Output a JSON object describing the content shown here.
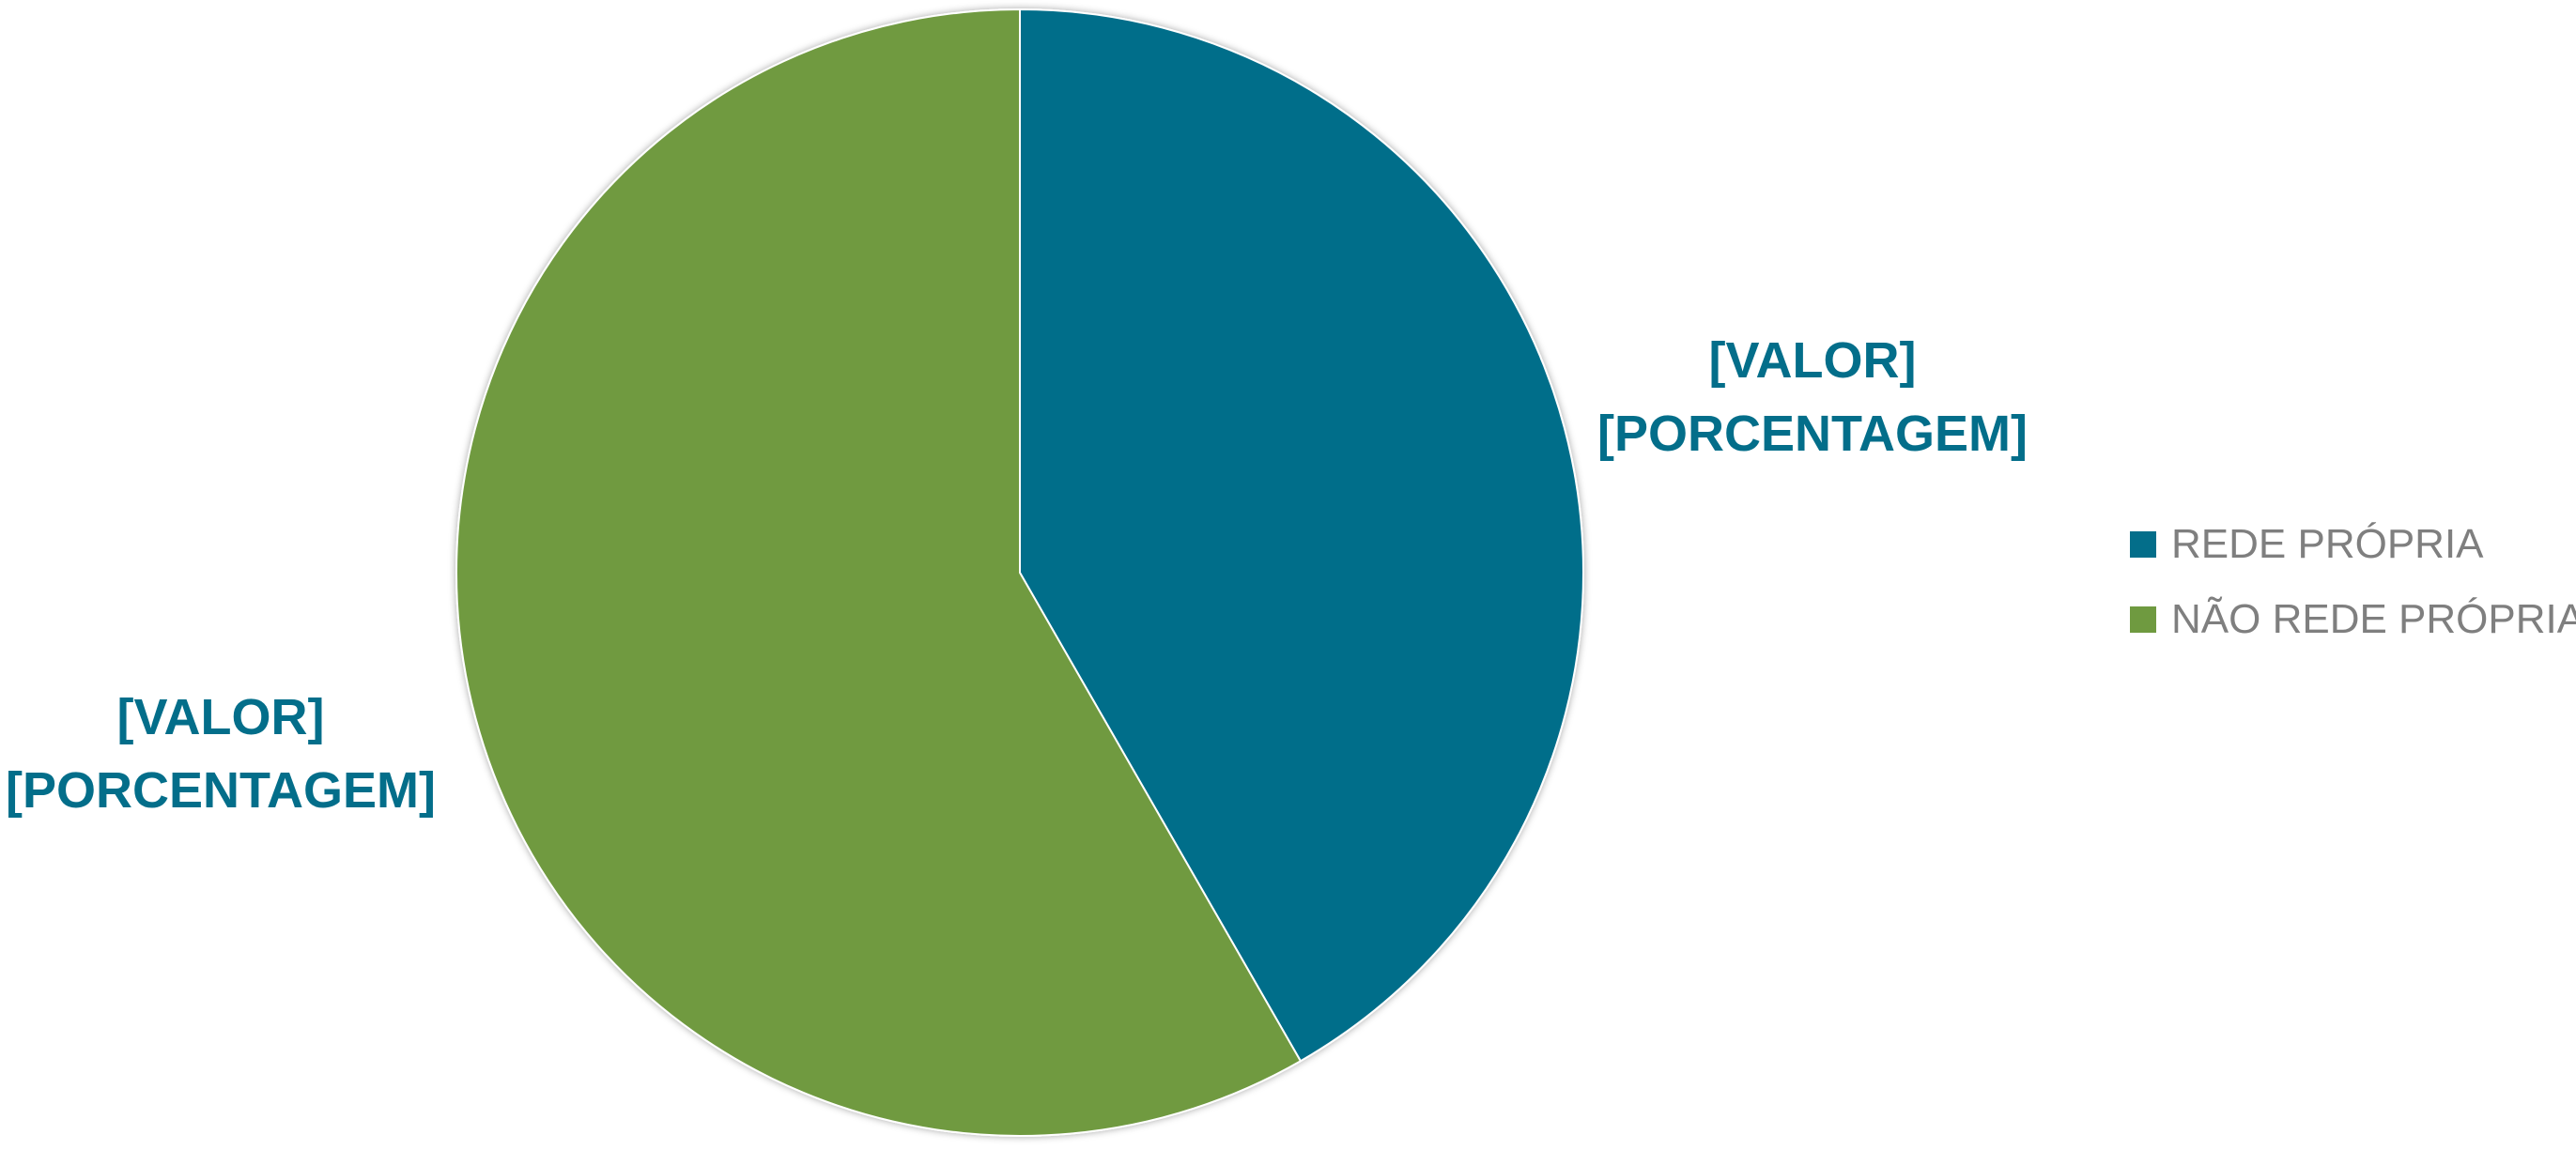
{
  "chart_data": {
    "type": "pie",
    "start_angle_deg": 0,
    "direction": "clockwise",
    "slices": [
      {
        "name": "REDE PRÓPRIA",
        "value": 41.7,
        "color": "#036E8A",
        "label_line1": "[VALOR]",
        "label_line2": "[PORCENTAGEM]"
      },
      {
        "name": "NÃO REDE PRÓPRIA",
        "value": 58.3,
        "color": "#6F9A40",
        "label_line1": "[VALOR]",
        "label_line2": "[PORCENTAGEM]"
      }
    ],
    "legend": {
      "placement": "right",
      "entries": [
        "REDE PRÓPRIA",
        "NÃO REDE PRÓPRIA"
      ]
    },
    "label_color": "#036E8A",
    "legend_text_color": "#7F7F7F"
  }
}
